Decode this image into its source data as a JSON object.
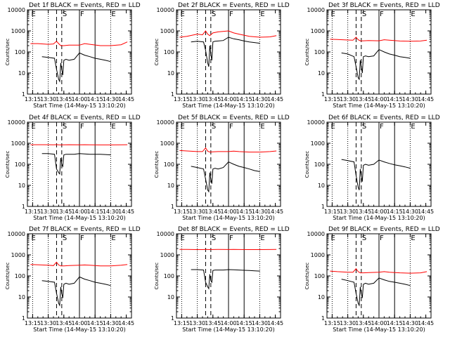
{
  "figure": {
    "xlabel": "Start Time (14-May-15 13:10:20)",
    "ylabel": "Counts/sec",
    "x_tick_labels": [
      "13:15",
      "13:30",
      "13:45",
      "14:00",
      "14:15",
      "14:30",
      "14:45"
    ],
    "y_tick_labels": [
      "1",
      "10",
      "100",
      "1000",
      "10000"
    ],
    "markers": [
      "E",
      "S",
      "F",
      "E"
    ],
    "colors": {
      "events": "#000000",
      "lld": "#ff0000"
    }
  },
  "chart_data": [
    {
      "type": "line",
      "title": "Det 1f BLACK = Events, RED = LLD",
      "xlabel": "Start Time (14-May-15 13:10:20)",
      "ylabel": "Counts/sec",
      "yscale": "log",
      "ylim": [
        1,
        10000
      ],
      "xlim": [
        "13:10",
        "14:50"
      ],
      "series": [
        {
          "name": "Events",
          "color": "#000000",
          "x": [
            "13:24",
            "13:30",
            "13:36",
            "13:38",
            "13:40",
            "13:41",
            "13:42",
            "13:43",
            "13:44",
            "13:45",
            "13:47",
            "13:50",
            "13:55",
            "14:00",
            "14:05",
            "14:10",
            "14:15",
            "14:20",
            "14:25",
            "14:30"
          ],
          "values": [
            60,
            55,
            50,
            15,
            5,
            4,
            30,
            15,
            8,
            40,
            45,
            40,
            45,
            90,
            70,
            60,
            50,
            45,
            40,
            35
          ]
        },
        {
          "name": "LLD",
          "color": "#ff0000",
          "x": [
            "13:13",
            "13:20",
            "13:30",
            "13:35",
            "13:38",
            "13:40",
            "13:42",
            "13:45",
            "13:50",
            "14:00",
            "14:05",
            "14:10",
            "14:20",
            "14:30",
            "14:40",
            "14:46"
          ],
          "values": [
            250,
            250,
            230,
            240,
            320,
            250,
            200,
            200,
            210,
            210,
            250,
            230,
            200,
            200,
            220,
            300
          ]
        }
      ]
    },
    {
      "type": "line",
      "title": "Det 2f BLACK = Events, RED = LLD",
      "xlabel": "Start Time (14-May-15 13:10:20)",
      "ylabel": "Counts/sec",
      "yscale": "log",
      "ylim": [
        1,
        10000
      ],
      "xlim": [
        "13:10",
        "14:50"
      ],
      "series": [
        {
          "name": "Events",
          "color": "#000000",
          "x": [
            "13:24",
            "13:30",
            "13:36",
            "13:38",
            "13:40",
            "13:41",
            "13:42",
            "13:43",
            "13:44",
            "13:45",
            "13:47",
            "13:50",
            "13:55",
            "14:00",
            "14:05",
            "14:10",
            "14:15",
            "14:20",
            "14:25",
            "14:30"
          ],
          "values": [
            300,
            320,
            300,
            120,
            30,
            20,
            200,
            80,
            40,
            300,
            320,
            330,
            350,
            500,
            420,
            380,
            330,
            300,
            280,
            260
          ]
        },
        {
          "name": "LLD",
          "color": "#ff0000",
          "x": [
            "13:13",
            "13:20",
            "13:30",
            "13:35",
            "13:38",
            "13:40",
            "13:42",
            "13:45",
            "13:50",
            "14:00",
            "14:05",
            "14:10",
            "14:20",
            "14:30",
            "14:40",
            "14:46"
          ],
          "values": [
            500,
            550,
            700,
            650,
            1000,
            700,
            600,
            800,
            900,
            1000,
            800,
            700,
            550,
            500,
            520,
            600
          ]
        }
      ]
    },
    {
      "type": "line",
      "title": "Det 3f BLACK = Events, RED = LLD",
      "xlabel": "Start Time (14-May-15 13:10:20)",
      "ylabel": "Counts/sec",
      "yscale": "log",
      "ylim": [
        1,
        10000
      ],
      "xlim": [
        "13:10",
        "14:50"
      ],
      "series": [
        {
          "name": "Events",
          "color": "#000000",
          "x": [
            "13:24",
            "13:30",
            "13:36",
            "13:38",
            "13:40",
            "13:41",
            "13:42",
            "13:43",
            "13:44",
            "13:45",
            "13:47",
            "13:50",
            "13:55",
            "14:00",
            "14:05",
            "14:10",
            "14:15",
            "14:20",
            "14:25",
            "14:30"
          ],
          "values": [
            90,
            80,
            60,
            20,
            6,
            5,
            40,
            20,
            10,
            60,
            65,
            60,
            65,
            130,
            100,
            80,
            70,
            60,
            55,
            50
          ]
        },
        {
          "name": "LLD",
          "color": "#ff0000",
          "x": [
            "13:13",
            "13:20",
            "13:30",
            "13:35",
            "13:38",
            "13:40",
            "13:42",
            "13:45",
            "13:50",
            "14:00",
            "14:05",
            "14:10",
            "14:20",
            "14:30",
            "14:40",
            "14:46"
          ],
          "values": [
            400,
            390,
            370,
            360,
            500,
            380,
            340,
            340,
            350,
            340,
            380,
            360,
            330,
            320,
            330,
            360
          ]
        }
      ]
    },
    {
      "type": "line",
      "title": "Det 4f BLACK = Events, RED = LLD",
      "xlabel": "Start Time (14-May-15 13:10:20)",
      "ylabel": "Counts/sec",
      "yscale": "log",
      "ylim": [
        1,
        10000
      ],
      "xlim": [
        "13:10",
        "14:50"
      ],
      "series": [
        {
          "name": "Events",
          "color": "#000000",
          "x": [
            "13:24",
            "13:30",
            "13:36",
            "13:38",
            "13:40",
            "13:41",
            "13:42",
            "13:43",
            "13:44",
            "13:45",
            "13:47",
            "13:50",
            "13:55",
            "14:00",
            "14:05",
            "14:10",
            "14:15",
            "14:20",
            "14:25",
            "14:30"
          ],
          "values": [
            320,
            320,
            300,
            60,
            40,
            35,
            200,
            100,
            80,
            280,
            300,
            300,
            300,
            320,
            310,
            300,
            300,
            300,
            290,
            280
          ]
        },
        {
          "name": "LLD",
          "color": "#ff0000",
          "x": [
            "13:13",
            "13:20",
            "13:30",
            "13:35",
            "13:38",
            "13:40",
            "13:42",
            "13:45",
            "13:50",
            "14:00",
            "14:05",
            "14:10",
            "14:20",
            "14:30",
            "14:40",
            "14:46"
          ],
          "values": [
            850,
            850,
            850,
            840,
            860,
            840,
            830,
            840,
            850,
            840,
            850,
            840,
            830,
            830,
            840,
            850
          ]
        }
      ]
    },
    {
      "type": "line",
      "title": "Det 5f BLACK = Events, RED = LLD",
      "xlabel": "Start Time (14-May-15 13:10:20)",
      "ylabel": "Counts/sec",
      "yscale": "log",
      "ylim": [
        1,
        10000
      ],
      "xlim": [
        "13:10",
        "14:50"
      ],
      "series": [
        {
          "name": "Events",
          "color": "#000000",
          "x": [
            "13:24",
            "13:30",
            "13:36",
            "13:38",
            "13:40",
            "13:41",
            "13:42",
            "13:43",
            "13:44",
            "13:45",
            "13:47",
            "13:50",
            "13:55",
            "14:00",
            "14:05",
            "14:10",
            "14:15",
            "14:20",
            "14:25",
            "14:30"
          ],
          "values": [
            80,
            70,
            60,
            20,
            6,
            5,
            40,
            20,
            12,
            60,
            65,
            60,
            70,
            130,
            100,
            80,
            70,
            60,
            50,
            45
          ]
        },
        {
          "name": "LLD",
          "color": "#ff0000",
          "x": [
            "13:13",
            "13:20",
            "13:30",
            "13:35",
            "13:38",
            "13:40",
            "13:42",
            "13:45",
            "13:50",
            "14:00",
            "14:05",
            "14:10",
            "14:20",
            "14:30",
            "14:40",
            "14:46"
          ],
          "values": [
            450,
            430,
            400,
            400,
            600,
            420,
            380,
            390,
            400,
            400,
            420,
            400,
            380,
            380,
            400,
            430
          ]
        }
      ]
    },
    {
      "type": "line",
      "title": "Det 6f BLACK = Events, RED = LLD",
      "xlabel": "Start Time (14-May-15 13:10:20)",
      "ylabel": "Counts/sec",
      "yscale": "log",
      "ylim": [
        1,
        10000
      ],
      "xlim": [
        "13:10",
        "14:50"
      ],
      "series": [
        {
          "name": "Events",
          "color": "#000000",
          "x": [
            "13:24",
            "13:30",
            "13:36",
            "13:38",
            "13:40",
            "13:41",
            "13:42",
            "13:43",
            "13:44",
            "13:45",
            "13:47",
            "13:50",
            "13:55",
            "14:00",
            "14:05",
            "14:10",
            "14:15",
            "14:20",
            "14:25",
            "14:30"
          ],
          "values": [
            170,
            150,
            130,
            30,
            8,
            6,
            60,
            30,
            15,
            90,
            100,
            90,
            100,
            160,
            130,
            110,
            95,
            85,
            75,
            65
          ]
        }
      ]
    },
    {
      "type": "line",
      "title": "Det 7f BLACK = Events, RED = LLD",
      "xlabel": "Start Time (14-May-15 13:10:20)",
      "ylabel": "Counts/sec",
      "yscale": "log",
      "ylim": [
        1,
        10000
      ],
      "xlim": [
        "13:10",
        "14:50"
      ],
      "series": [
        {
          "name": "Events",
          "color": "#000000",
          "x": [
            "13:24",
            "13:30",
            "13:36",
            "13:38",
            "13:40",
            "13:41",
            "13:42",
            "13:43",
            "13:44",
            "13:45",
            "13:47",
            "13:50",
            "13:55",
            "14:00",
            "14:05",
            "14:10",
            "14:15",
            "14:20",
            "14:25",
            "14:30"
          ],
          "values": [
            60,
            55,
            50,
            15,
            5,
            4,
            30,
            15,
            9,
            40,
            45,
            40,
            45,
            90,
            70,
            60,
            50,
            45,
            40,
            35
          ]
        },
        {
          "name": "LLD",
          "color": "#ff0000",
          "x": [
            "13:13",
            "13:20",
            "13:30",
            "13:35",
            "13:38",
            "13:40",
            "13:42",
            "13:45",
            "13:50",
            "14:00",
            "14:05",
            "14:10",
            "14:20",
            "14:30",
            "14:40",
            "14:46"
          ],
          "values": [
            350,
            340,
            320,
            310,
            450,
            330,
            300,
            300,
            310,
            320,
            330,
            320,
            300,
            300,
            320,
            350
          ]
        }
      ]
    },
    {
      "type": "line",
      "title": "Det 8f BLACK = Events, RED = LLD",
      "xlabel": "Start Time (14-May-15 13:10:20)",
      "ylabel": "Counts/sec",
      "yscale": "log",
      "ylim": [
        1,
        10000
      ],
      "xlim": [
        "13:10",
        "14:50"
      ],
      "series": [
        {
          "name": "Events",
          "color": "#000000",
          "x": [
            "13:24",
            "13:30",
            "13:36",
            "13:38",
            "13:40",
            "13:41",
            "13:42",
            "13:43",
            "13:44",
            "13:45",
            "13:47",
            "13:50",
            "13:55",
            "14:00",
            "14:05",
            "14:10",
            "14:15",
            "14:20",
            "14:25",
            "14:30"
          ],
          "values": [
            200,
            200,
            190,
            50,
            30,
            25,
            120,
            60,
            50,
            180,
            190,
            190,
            190,
            200,
            195,
            190,
            185,
            180,
            175,
            170
          ]
        },
        {
          "name": "LLD",
          "color": "#ff0000",
          "x": [
            "13:13",
            "13:20",
            "13:30",
            "13:35",
            "13:38",
            "13:40",
            "13:42",
            "13:45",
            "13:50",
            "14:00",
            "14:05",
            "14:10",
            "14:20",
            "14:30",
            "14:40",
            "14:46"
          ],
          "values": [
            1800,
            1800,
            1780,
            1780,
            1800,
            1790,
            1780,
            1790,
            1800,
            1790,
            1800,
            1790,
            1780,
            1780,
            1790,
            1800
          ]
        }
      ]
    },
    {
      "type": "line",
      "title": "Det 9f BLACK = Events, RED = LLD",
      "xlabel": "Start Time (14-May-15 13:10:20)",
      "ylabel": "Counts/sec",
      "yscale": "log",
      "ylim": [
        1,
        10000
      ],
      "xlim": [
        "13:10",
        "14:50"
      ],
      "series": [
        {
          "name": "Events",
          "color": "#000000",
          "x": [
            "13:24",
            "13:30",
            "13:36",
            "13:38",
            "13:40",
            "13:41",
            "13:42",
            "13:43",
            "13:44",
            "13:45",
            "13:47",
            "13:50",
            "13:55",
            "14:00",
            "14:05",
            "14:10",
            "14:15",
            "14:20",
            "14:25",
            "14:30"
          ],
          "values": [
            70,
            60,
            50,
            15,
            5,
            4,
            30,
            15,
            9,
            40,
            45,
            40,
            45,
            80,
            65,
            55,
            50,
            45,
            40,
            35
          ]
        },
        {
          "name": "LLD",
          "color": "#ff0000",
          "x": [
            "13:13",
            "13:20",
            "13:30",
            "13:35",
            "13:38",
            "13:40",
            "13:42",
            "13:45",
            "13:50",
            "14:00",
            "14:05",
            "14:10",
            "14:20",
            "14:30",
            "14:40",
            "14:46"
          ],
          "values": [
            170,
            160,
            150,
            150,
            220,
            160,
            140,
            140,
            145,
            150,
            160,
            150,
            140,
            135,
            140,
            160
          ]
        }
      ]
    }
  ]
}
